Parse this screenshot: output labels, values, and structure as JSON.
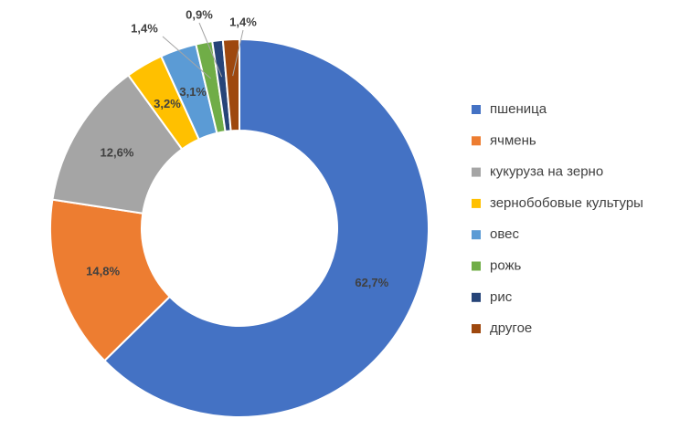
{
  "chart_data": {
    "type": "donut",
    "categories": [
      "пшеница",
      "ячмень",
      "кукуруза на зерно",
      "зернобобовые культуры",
      "овес",
      "рожь",
      "рис",
      "другое"
    ],
    "values": [
      62.7,
      14.8,
      12.6,
      3.2,
      3.1,
      1.4,
      0.9,
      1.4
    ],
    "value_labels": [
      "62,7%",
      "14,8%",
      "12,6%",
      "3,2%",
      "3,1%",
      "1,4%",
      "0,9%",
      "1,4%"
    ],
    "colors": [
      "#4472c4",
      "#ed7d31",
      "#a5a5a5",
      "#ffc000",
      "#5b9bd5",
      "#70ad47",
      "#264478",
      "#9e480e"
    ],
    "legend": "right"
  }
}
